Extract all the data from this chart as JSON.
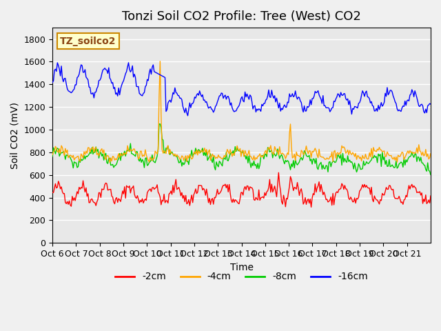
{
  "title": "Tonzi Soil CO2 Profile: Tree (West) CO2",
  "ylabel": "Soil CO2 (mV)",
  "xlabel": "Time",
  "watermark": "TZ_soilco2",
  "ylim": [
    0,
    1900
  ],
  "yticks": [
    0,
    200,
    400,
    600,
    800,
    1000,
    1200,
    1400,
    1600,
    1800
  ],
  "xtick_labels": [
    "Oct 6",
    "Oct 7",
    "Oct 8",
    "Oct 9",
    "Oct 10",
    "Oct 11",
    "Oct 12",
    "Oct 13",
    "Oct 14",
    "Oct 15",
    "Oct 16",
    "Oct 17",
    "Oct 18",
    "Oct 19",
    "Oct 20",
    "Oct 21"
  ],
  "n_days": 16,
  "colors": {
    "m2cm": "#ff0000",
    "m4cm": "#ffa500",
    "m8cm": "#00cc00",
    "m16cm": "#0000ff"
  },
  "legend_labels": [
    "-2cm",
    "-4cm",
    "-8cm",
    "-16cm"
  ],
  "plot_bg": "#e8e8e8",
  "title_fontsize": 13,
  "label_fontsize": 10,
  "tick_fontsize": 9
}
